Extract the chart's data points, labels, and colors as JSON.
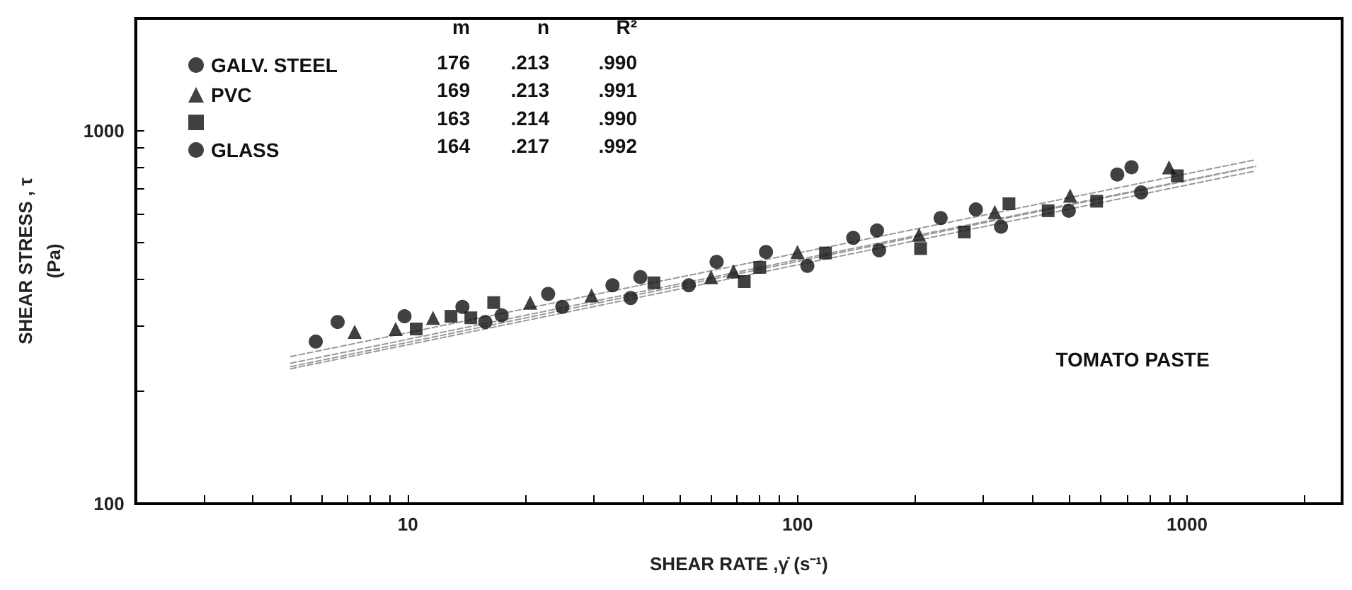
{
  "chart_data": {
    "type": "scatter",
    "xlabel": "SHEAR RATE ,γ̇ (s⁻¹)",
    "ylabel": "SHEAR STRESS , τ\n(Pa)",
    "log": "xy",
    "grid": false,
    "legend": "top left",
    "xlim": [
      2,
      2500
    ],
    "ylim": [
      100,
      2000
    ],
    "xticks": [
      {
        "value": 2,
        "label": null
      },
      {
        "value": 3,
        "label": null
      },
      {
        "value": 4,
        "label": null
      },
      {
        "value": 5,
        "label": null
      },
      {
        "value": 6,
        "label": null
      },
      {
        "value": 7,
        "label": null
      },
      {
        "value": 8,
        "label": null
      },
      {
        "value": 9,
        "label": null
      },
      10,
      {
        "value": 20,
        "label": null
      },
      {
        "value": 30,
        "label": null
      },
      {
        "value": 40,
        "label": null
      },
      {
        "value": 50,
        "label": null
      },
      {
        "value": 60,
        "label": null
      },
      {
        "value": 70,
        "label": null
      },
      {
        "value": 80,
        "label": null
      },
      {
        "value": 90,
        "label": null
      },
      100,
      {
        "value": 200,
        "label": null
      },
      {
        "value": 300,
        "label": null
      },
      {
        "value": 400,
        "label": null
      },
      {
        "value": 500,
        "label": null
      },
      {
        "value": 600,
        "label": null
      },
      {
        "value": 700,
        "label": null
      },
      {
        "value": 800,
        "label": null
      },
      {
        "value": 900,
        "label": null
      },
      1000,
      {
        "value": 2000,
        "label": null
      }
    ],
    "yticks": [
      100,
      {
        "value": 200,
        "label": null
      },
      {
        "value": 300,
        "label": null
      },
      {
        "value": 400,
        "label": null
      },
      {
        "value": 500,
        "label": null
      },
      {
        "value": 600,
        "label": null
      },
      {
        "value": 700,
        "label": null
      },
      {
        "value": 800,
        "label": null
      },
      {
        "value": 900,
        "label": null
      },
      1000,
      {
        "value": 2000,
        "label": null
      }
    ],
    "series": [
      {
        "name": "GALV. STEEL",
        "color": "#111111",
        "marker": "circle",
        "x": [
          6.6,
          9.8,
          13.8,
          22.9,
          33.5,
          39.5,
          62,
          139,
          233,
          287,
          662,
          720
        ],
        "values": [
          307,
          318,
          337,
          365,
          385,
          405,
          445,
          516,
          583,
          615,
          763,
          798
        ]
      },
      {
        "name": "PVC",
        "color": "#111111",
        "marker": "triangle",
        "x": [
          7.3,
          9.3,
          11.6,
          20.6,
          29.6,
          60,
          68.5,
          100,
          205,
          321,
          501,
          899
        ],
        "values": [
          289,
          294,
          315,
          346,
          362,
          405,
          420,
          473,
          526,
          605,
          670,
          798
        ]
      },
      {
        "color": "#111111",
        "marker": "square",
        "x": [
          10.5,
          12.9,
          14.5,
          16.6,
          42.8,
          73,
          80,
          83,
          106,
          118,
          207,
          268,
          349,
          440,
          586,
          944
        ],
        "values": [
          294,
          318,
          315,
          346,
          391,
          394,
          430,
          null,
          null,
          470,
          483,
          535,
          637,
          610,
          647,
          757
        ]
      },
      {
        "name": "GLASS",
        "color": "#111111",
        "marker": "circle",
        "x": [
          5.8,
          15.8,
          17.4,
          24.9,
          37.3,
          52.6,
          83,
          106,
          160,
          162,
          333,
          497,
          762
        ],
        "values": [
          272,
          307,
          320,
          337,
          356,
          385,
          473,
          434,
          540,
          478,
          553,
          610,
          683
        ]
      },
      {
        "type": "line",
        "color": "#999999",
        "line_style": "dashed",
        "marker": "none",
        "x": [
          5,
          1500
        ],
        "values": [
          248,
          836
        ]
      },
      {
        "type": "line",
        "color": "#999999",
        "line_style": "dashed",
        "marker": "none",
        "x": [
          5,
          1500
        ],
        "values": [
          238,
          803
        ]
      },
      {
        "type": "line",
        "color": "#999999",
        "line_style": "dashed",
        "marker": "none",
        "x": [
          5,
          1500
        ],
        "values": [
          230,
          780
        ]
      },
      {
        "type": "line",
        "color": "#999999",
        "line_style": "dashed",
        "marker": "none",
        "x": [
          5,
          1500
        ],
        "values": [
          233,
          802
        ]
      }
    ],
    "annotations": [
      "m",
      "n",
      "R²",
      "176",
      ".213",
      ".990",
      "169",
      ".213",
      ".991",
      "163",
      ".214",
      ".990",
      "164",
      ".217",
      ".992",
      "TOMATO PASTE"
    ]
  }
}
